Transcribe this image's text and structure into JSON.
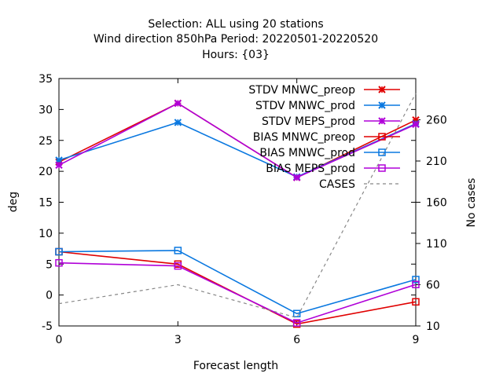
{
  "chart_data": {
    "type": "line",
    "title_lines": [
      "Selection: ALL using    20 stations",
      "Wind direction 850hPa   Period: 20220501-20220520",
      "Hours: {03}"
    ],
    "xlabel": "Forecast length",
    "ylabel": "deg",
    "y2label": "No cases",
    "x": [
      0,
      3,
      6,
      9
    ],
    "xlim": [
      0,
      9
    ],
    "ylim": [
      -5,
      35
    ],
    "y2lim": [
      10,
      310
    ],
    "x_ticks": [
      0,
      3,
      6,
      9
    ],
    "y_ticks": [
      -5,
      0,
      5,
      10,
      15,
      20,
      25,
      30,
      35
    ],
    "y2_ticks": [
      10,
      60,
      110,
      160,
      210,
      260
    ],
    "grid": false,
    "legend_position": "top-right",
    "series": [
      {
        "name": "STDV MNWC_preop",
        "color": "#e00000",
        "marker": "x",
        "values": [
          21.5,
          31.0,
          19.0,
          28.3
        ]
      },
      {
        "name": "STDV MNWC_prod",
        "color": "#0a78e0",
        "marker": "x",
        "values": [
          21.8,
          27.9,
          19.1,
          27.7
        ]
      },
      {
        "name": "STDV MEPS_prod",
        "color": "#b000d8",
        "marker": "x",
        "values": [
          21.0,
          31.0,
          19.0,
          27.6
        ]
      },
      {
        "name": "BIAS MNWC_preop",
        "color": "#e00000",
        "marker": "square",
        "values": [
          7.0,
          5.0,
          -4.7,
          -1.1
        ]
      },
      {
        "name": "BIAS MNWC_prod",
        "color": "#0a78e0",
        "marker": "square",
        "values": [
          7.0,
          7.2,
          -3.0,
          2.5
        ]
      },
      {
        "name": "BIAS MEPS_prod",
        "color": "#b000d8",
        "marker": "square",
        "values": [
          5.2,
          4.7,
          -4.5,
          1.7
        ]
      },
      {
        "name": "CASES",
        "color": "#888888",
        "marker": "none",
        "dashed": true,
        "axis": "y2",
        "values": [
          37,
          60,
          20,
          292
        ]
      }
    ]
  }
}
